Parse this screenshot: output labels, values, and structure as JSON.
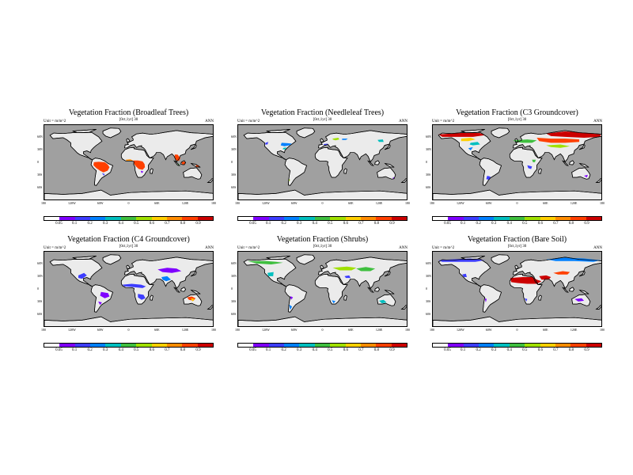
{
  "common": {
    "units_label": "Unit = m/m^2",
    "period_label": "ANN",
    "center_label": "[0ct,1yr] 30",
    "lat_ticks": [
      "60N",
      "30N",
      "0",
      "30S",
      "60S"
    ],
    "lon_ticks": [
      "180",
      "120W",
      "60W",
      "0",
      "60E",
      "120E",
      "180"
    ],
    "colorbar_ticks": [
      "0.05",
      "0.1",
      "0.2",
      "0.3",
      "0.4",
      "0.5",
      "0.6",
      "0.7",
      "0.8",
      "0.9"
    ],
    "colorbar_colors": [
      "#ffffff",
      "#7f00ff",
      "#3d3dff",
      "#0080ff",
      "#00bfbf",
      "#3fbf3f",
      "#a0e000",
      "#ffd000",
      "#ff8c00",
      "#ff4000",
      "#cc0000"
    ],
    "colors": {
      "ocean": "#a0a0a0",
      "land": "#ebebeb",
      "coast": "#000000"
    }
  },
  "panels": [
    {
      "title": "Vegetation Fraction (Broadleaf Trees)"
    },
    {
      "title": "Vegetation Fraction (Needleleaf Trees)"
    },
    {
      "title": "Vegetation Fraction (C3 Groundcover)"
    },
    {
      "title": "Vegetation Fraction (C4 Groundcover)"
    },
    {
      "title": "Vegetation Fraction (Shrubs)"
    },
    {
      "title": "Vegetation Fraction (Bare Soil)"
    }
  ]
}
